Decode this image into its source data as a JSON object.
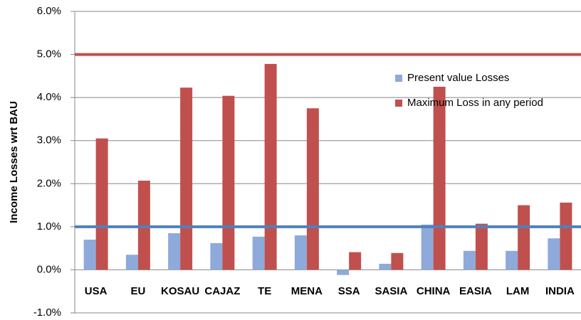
{
  "chart_data": {
    "type": "bar",
    "y_label": "Income Losses wrt BAU",
    "categories": [
      "USA",
      "EU",
      "KOSAU",
      "CAJAZ",
      "TE",
      "MENA",
      "SSA",
      "SASIA",
      "CHINA",
      "EASIA",
      "LAM",
      "INDIA"
    ],
    "series": [
      {
        "name": "Present value Losses",
        "color": "#8eaadb",
        "values": [
          0.7,
          0.35,
          0.85,
          0.62,
          0.77,
          0.8,
          -0.12,
          0.14,
          1.05,
          0.44,
          0.44,
          0.73
        ]
      },
      {
        "name": "Maximum Loss in any period",
        "color": "#c0504d",
        "values": [
          3.05,
          2.07,
          4.23,
          4.04,
          4.78,
          3.75,
          0.41,
          0.39,
          4.25,
          1.07,
          1.5,
          1.56
        ]
      }
    ],
    "reference_lines": [
      {
        "value": 5,
        "color": "#c0504d"
      },
      {
        "value": 1,
        "color": "#4f81bd"
      }
    ],
    "ylim": [
      -1,
      6
    ],
    "yticks": [
      {
        "value": -1,
        "label": "-1.0%"
      },
      {
        "value": 0,
        "label": "0.0%"
      },
      {
        "value": 1,
        "label": "1.0%"
      },
      {
        "value": 2,
        "label": "2.0%"
      },
      {
        "value": 3,
        "label": "3.0%"
      },
      {
        "value": 4,
        "label": "4.0%"
      },
      {
        "value": 5,
        "label": "5.0%"
      },
      {
        "value": 6,
        "label": "6.0%"
      }
    ],
    "grid": true
  }
}
